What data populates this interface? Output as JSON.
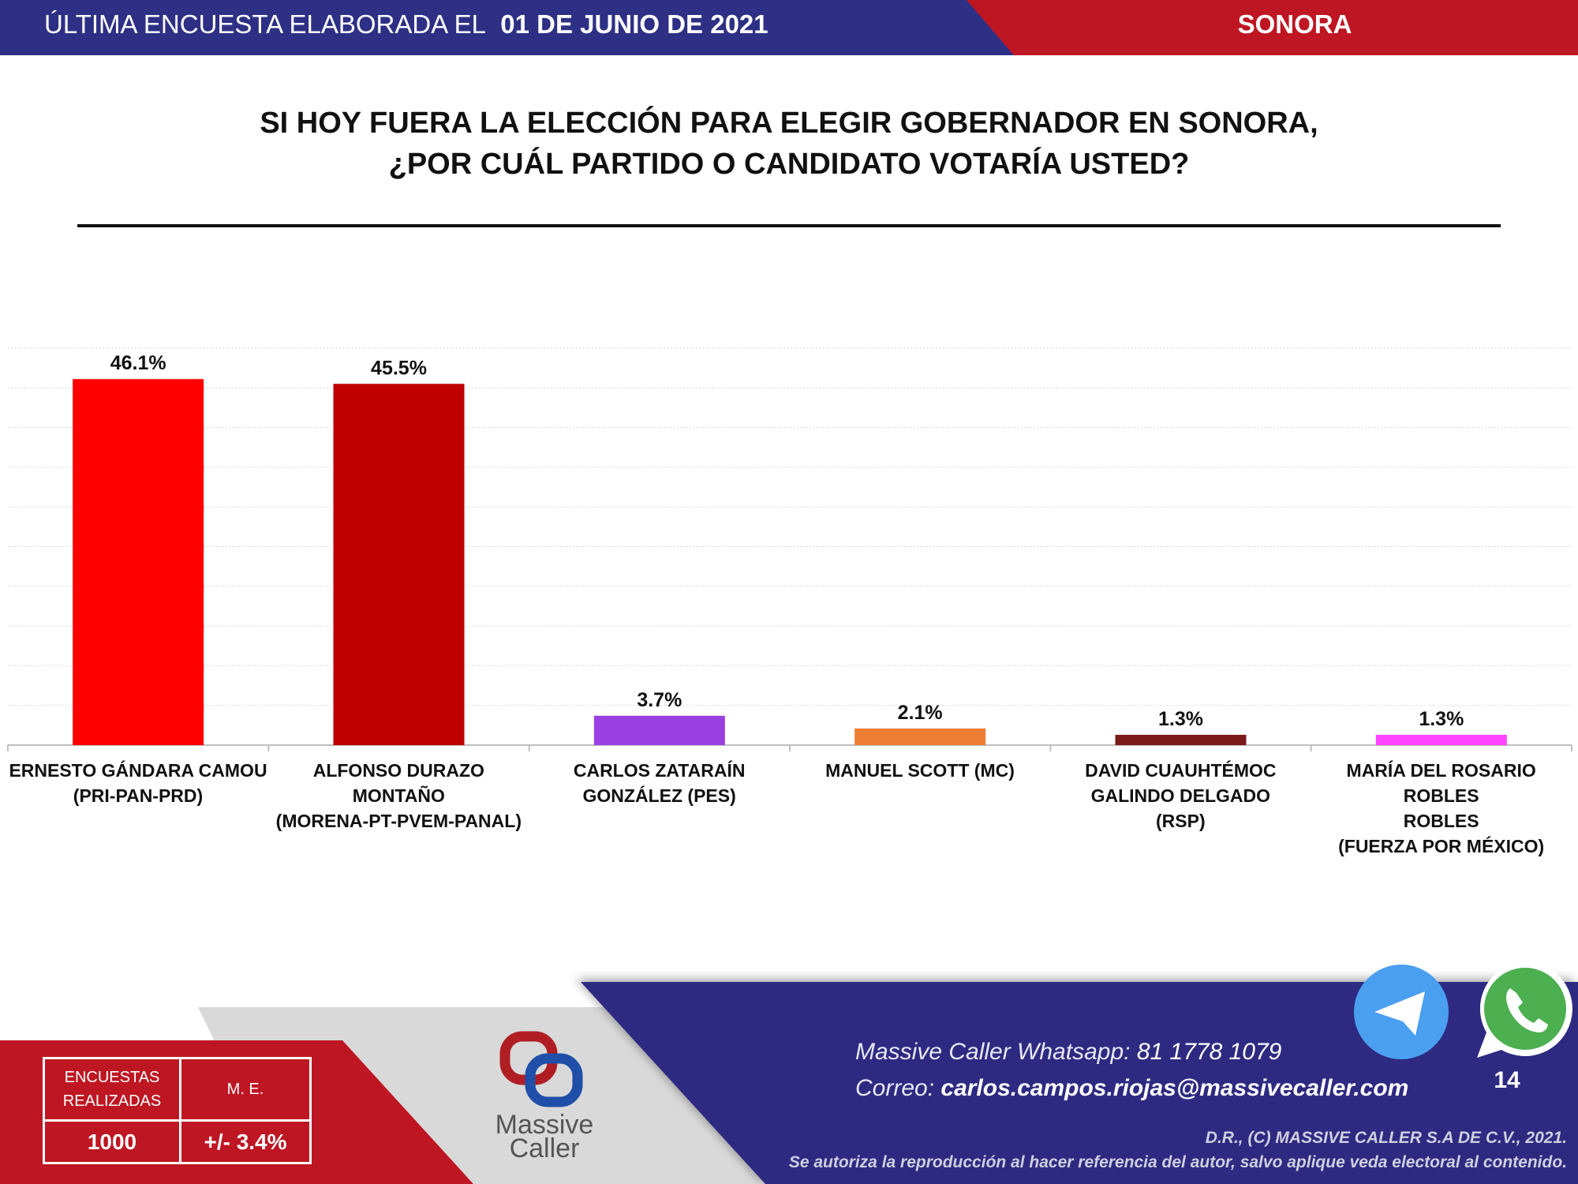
{
  "header": {
    "prefix": "ÚLTIMA ENCUESTA ELABORADA EL",
    "date": "01 DE JUNIO DE 2021",
    "state": "SONORA",
    "colors": {
      "blue": "#2E3085",
      "red": "#BE1622"
    }
  },
  "title": {
    "line1": "SI HOY FUERA LA ELECCIÓN PARA ELEGIR GOBERNADOR EN SONORA,",
    "line2": "¿POR CUÁL PARTIDO O CANDIDATO VOTARÍA USTED?"
  },
  "chart_data": {
    "type": "bar",
    "title": "SI HOY FUERA LA ELECCIÓN PARA ELEGIR GOBERNADOR EN SONORA, ¿POR CUÁL PARTIDO O CANDIDATO VOTARÍA USTED?",
    "categories": [
      [
        "ERNESTO GÁNDARA CAMOU",
        "(PRI-PAN-PRD)"
      ],
      [
        "ALFONSO DURAZO",
        "MONTAÑO",
        "(MORENA-PT-PVEM-PANAL)"
      ],
      [
        "CARLOS ZATARAÍN",
        "GONZÁLEZ (PES)"
      ],
      [
        "MANUEL SCOTT (MC)"
      ],
      [
        "DAVID CUAUHTÉMOC",
        "GALINDO DELGADO",
        "(RSP)"
      ],
      [
        "MARÍA DEL ROSARIO ROBLES",
        "ROBLES",
        "(FUERZA POR MÉXICO)"
      ]
    ],
    "values": [
      46.1,
      45.5,
      3.7,
      2.1,
      1.3,
      1.3
    ],
    "labels": [
      "46.1%",
      "45.5%",
      "3.7%",
      "2.1%",
      "1.3%",
      "1.3%"
    ],
    "colors": [
      "#FF0000",
      "#C00000",
      "#9B40E0",
      "#ED7D31",
      "#7A1A1A",
      "#FF44FF"
    ],
    "ylim": [
      0,
      50
    ],
    "grid_step": 5,
    "grid": true,
    "xlabel": "",
    "ylabel": ""
  },
  "stats": {
    "surveys_label": "ENCUESTAS REALIZADAS",
    "surveys_value": "1000",
    "me_label": "M. E.",
    "me_value": "+/- 3.4%"
  },
  "logo": {
    "line1": "Massive",
    "line2": "Caller"
  },
  "contact": {
    "whatsapp_label": "Massive Caller Whatsapp:",
    "whatsapp_number": "81 1778 1079",
    "email_label": "Correo:",
    "email": "carlos.campos.riojas@massivecaller.com"
  },
  "page_number": "14",
  "copyright": {
    "line1": "D.R., (C) MASSIVE CALLER S.A DE C.V., 2021.",
    "line2": "Se autoriza la reproducción al hacer referencia del autor, salvo aplique veda electoral al contenido."
  }
}
